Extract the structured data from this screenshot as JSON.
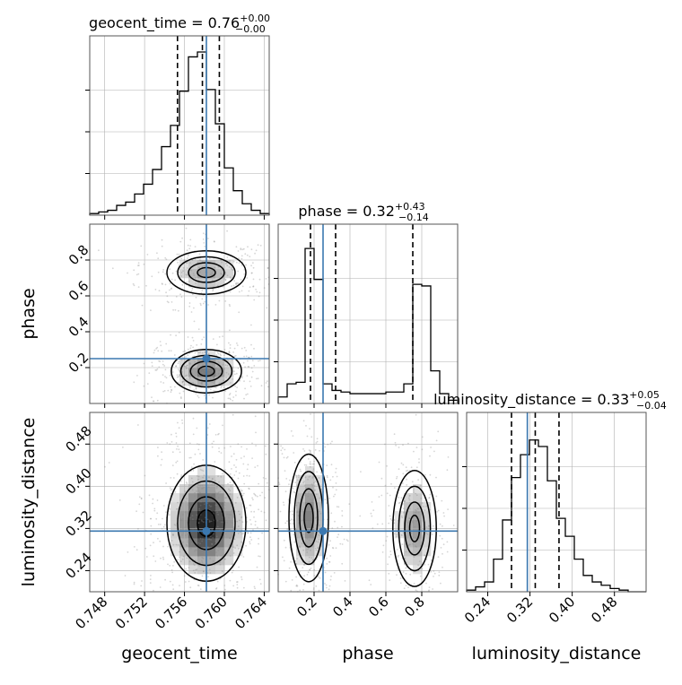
{
  "chart_data": {
    "type": "corner",
    "colors": {
      "truth": "#3b78b0",
      "hist": "#000000",
      "grid": "#b0b0b0"
    },
    "parameters": [
      "geocent_time",
      "phase",
      "luminosity_distance"
    ],
    "titles": [
      {
        "name": "geocent_time",
        "value": "0.76",
        "plus": "+0.00",
        "minus": "−0.00"
      },
      {
        "name": "phase",
        "value": "0.32",
        "plus": "+0.43",
        "minus": "−0.14"
      },
      {
        "name": "luminosity_distance",
        "value": "0.33",
        "plus": "+0.05",
        "minus": "−0.04"
      }
    ],
    "axis_labels": {
      "x": [
        "geocent_time",
        "phase",
        "luminosity_distance"
      ],
      "y": [
        "phase",
        "luminosity_distance"
      ]
    },
    "ranges": {
      "geocent_time": [
        0.7465,
        0.7645
      ],
      "phase": [
        0.0,
        1.0
      ],
      "luminosity_distance": [
        0.2,
        0.54
      ]
    },
    "ticks": {
      "geocent_time": [
        "0.748",
        "0.752",
        "0.756",
        "0.760",
        "0.764"
      ],
      "phase": [
        "0.2",
        "0.4",
        "0.6",
        "0.8"
      ],
      "luminosity_distance": [
        "0.24",
        "0.32",
        "0.40",
        "0.48"
      ]
    },
    "truths": {
      "geocent_time": 0.7582,
      "phase": 0.25,
      "luminosity_distance": 0.315
    },
    "quantiles": {
      "geocent_time": [
        0.7553,
        0.7578,
        0.7595
      ],
      "phase": [
        0.18,
        0.32,
        0.75
      ],
      "luminosity_distance": [
        0.285,
        0.33,
        0.375
      ]
    },
    "histograms": {
      "geocent_time": [
        0.01,
        0.02,
        0.03,
        0.06,
        0.08,
        0.13,
        0.19,
        0.28,
        0.42,
        0.55,
        0.76,
        0.97,
        1.0,
        0.77,
        0.56,
        0.29,
        0.15,
        0.07,
        0.03,
        0.01
      ],
      "phase": [
        0.04,
        0.12,
        0.13,
        0.95,
        0.76,
        0.12,
        0.08,
        0.07,
        0.06,
        0.06,
        0.06,
        0.06,
        0.07,
        0.07,
        0.12,
        0.73,
        0.72,
        0.2,
        0.06,
        0.02
      ],
      "luminosity_distance": [
        0.01,
        0.03,
        0.06,
        0.2,
        0.44,
        0.7,
        0.84,
        0.93,
        0.89,
        0.68,
        0.45,
        0.34,
        0.2,
        0.1,
        0.06,
        0.04,
        0.02,
        0.01,
        0.0,
        0.0
      ]
    },
    "grid": true
  }
}
